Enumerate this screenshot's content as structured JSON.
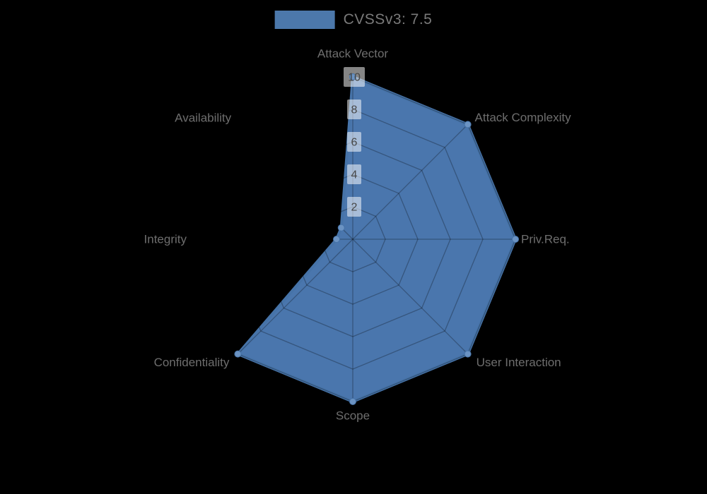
{
  "legend": {
    "label": "CVSSv3: 7.5",
    "swatch_color": "#4c78ab"
  },
  "chart_data": {
    "type": "radar",
    "categories": [
      "Attack Vector",
      "Attack Complexity",
      "Priv.Req.",
      "User Interaction",
      "Scope",
      "Confidentiality",
      "Integrity",
      "Availability"
    ],
    "series": [
      {
        "name": "CVSSv3: 7.5",
        "color": "#4c78ab",
        "values": [
          10,
          10,
          10,
          10,
          10,
          10,
          1,
          1
        ]
      }
    ],
    "ticks": [
      "2",
      "4",
      "6",
      "8",
      "10"
    ],
    "tick_values": [
      2,
      4,
      6,
      8,
      10
    ],
    "rmax": 10,
    "grid": true,
    "legend_position": "top"
  },
  "style": {
    "background": "#000000",
    "series_fill": "#4a76ad",
    "series_stroke": "#4673a8",
    "marker_color": "#6b93c3",
    "grid_line_color": "rgba(0,0,0,0.28)",
    "tick_box_color": "rgba(255,255,255,0.52)",
    "tick_text_color": "#474747",
    "axis_label_color": "#6e6e6e"
  }
}
